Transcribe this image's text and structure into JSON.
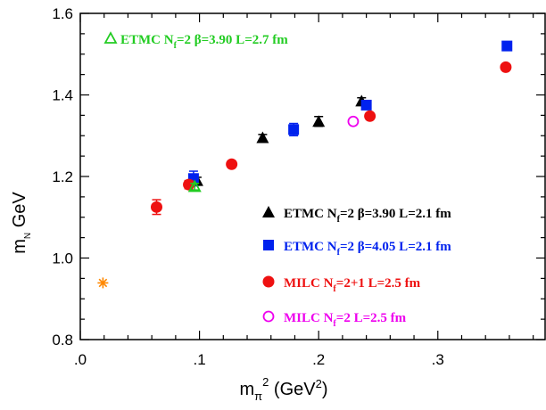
{
  "chart_data": {
    "type": "scatter",
    "xlabel_main": "m",
    "xlabel_sub": "π",
    "xlabel_sup": "2",
    "xlabel_unit_pre": "(GeV",
    "xlabel_unit_sup": "2",
    "xlabel_unit_post": ")",
    "ylabel_main": "m",
    "ylabel_sub": "N",
    "ylabel_unit": "GeV",
    "xlim": [
      0.0,
      0.39
    ],
    "ylim": [
      0.8,
      1.6
    ],
    "x_ticks": [
      {
        "value": 0.0,
        "label": ".0"
      },
      {
        "value": 0.1,
        "label": ".1"
      },
      {
        "value": 0.2,
        "label": ".2"
      },
      {
        "value": 0.3,
        "label": ".3"
      }
    ],
    "y_ticks": [
      {
        "value": 0.8,
        "label": "0.8"
      },
      {
        "value": 1.0,
        "label": "1.0"
      },
      {
        "value": 1.2,
        "label": "1.2"
      },
      {
        "value": 1.4,
        "label": "1.4"
      },
      {
        "value": 1.6,
        "label": "1.6"
      }
    ],
    "series": [
      {
        "name": "ETMC N_f=2 β=3.90 L=2.1 fm",
        "legend": {
          "pre": "ETMC N",
          "sub": "f",
          "post": "=2 β=3.90 L=2.1 fm"
        },
        "marker": "triangle",
        "color": "#000000",
        "points": [
          {
            "x": 0.098,
            "y": 1.19,
            "err": 0.008
          },
          {
            "x": 0.153,
            "y": 1.295,
            "err": 0.008
          },
          {
            "x": 0.2,
            "y": 1.335,
            "err": 0.012
          },
          {
            "x": 0.236,
            "y": 1.385,
            "err": 0.008
          }
        ]
      },
      {
        "name": "ETMC N_f=2 β=4.05 L=2.1 fm",
        "legend": {
          "pre": "ETMC N",
          "sub": "f",
          "post": "=2 β=4.05 L=2.1 fm"
        },
        "marker": "square",
        "color": "#0022ee",
        "points": [
          {
            "x": 0.095,
            "y": 1.195,
            "err": 0.018
          },
          {
            "x": 0.179,
            "y": 1.315,
            "err": 0.015
          },
          {
            "x": 0.24,
            "y": 1.375,
            "err": 0.008
          },
          {
            "x": 0.358,
            "y": 1.52,
            "err": 0.007
          }
        ]
      },
      {
        "name": "MILC N_f=2+1 L=2.5 fm",
        "legend": {
          "pre": "MILC N",
          "sub": "f",
          "post": "=2+1 L=2.5 fm"
        },
        "marker": "circle",
        "color": "#ee1111",
        "points": [
          {
            "x": 0.064,
            "y": 1.125,
            "err": 0.018
          },
          {
            "x": 0.091,
            "y": 1.18,
            "err": 0.01
          },
          {
            "x": 0.127,
            "y": 1.23,
            "err": 0.007
          },
          {
            "x": 0.243,
            "y": 1.348,
            "err": 0.007
          },
          {
            "x": 0.357,
            "y": 1.468,
            "err": 0.006
          }
        ]
      },
      {
        "name": "MILC N_f=2 L=2.5 fm",
        "legend": {
          "pre": "MILC N",
          "sub": "f",
          "post": "=2  L=2.5 fm"
        },
        "marker": "open-circle",
        "color": "#ee00ee",
        "points": [
          {
            "x": 0.229,
            "y": 1.335,
            "err": 0
          }
        ]
      },
      {
        "name": "ETMC N_f=2 β=3.90 L=2.7 fm",
        "legend": {
          "pre": "ETMC N",
          "sub": "f",
          "post": "=2 β=3.90 L=2.7 fm"
        },
        "marker": "open-triangle",
        "color": "#22cc22",
        "points": [
          {
            "x": 0.096,
            "y": 1.175,
            "err": 0.008
          }
        ]
      },
      {
        "name": "",
        "marker": "asterisk",
        "color": "#ff8800",
        "points": [
          {
            "x": 0.019,
            "y": 0.939,
            "err": 0
          }
        ]
      }
    ],
    "legend_placement": "right and top-left",
    "grid": false
  }
}
